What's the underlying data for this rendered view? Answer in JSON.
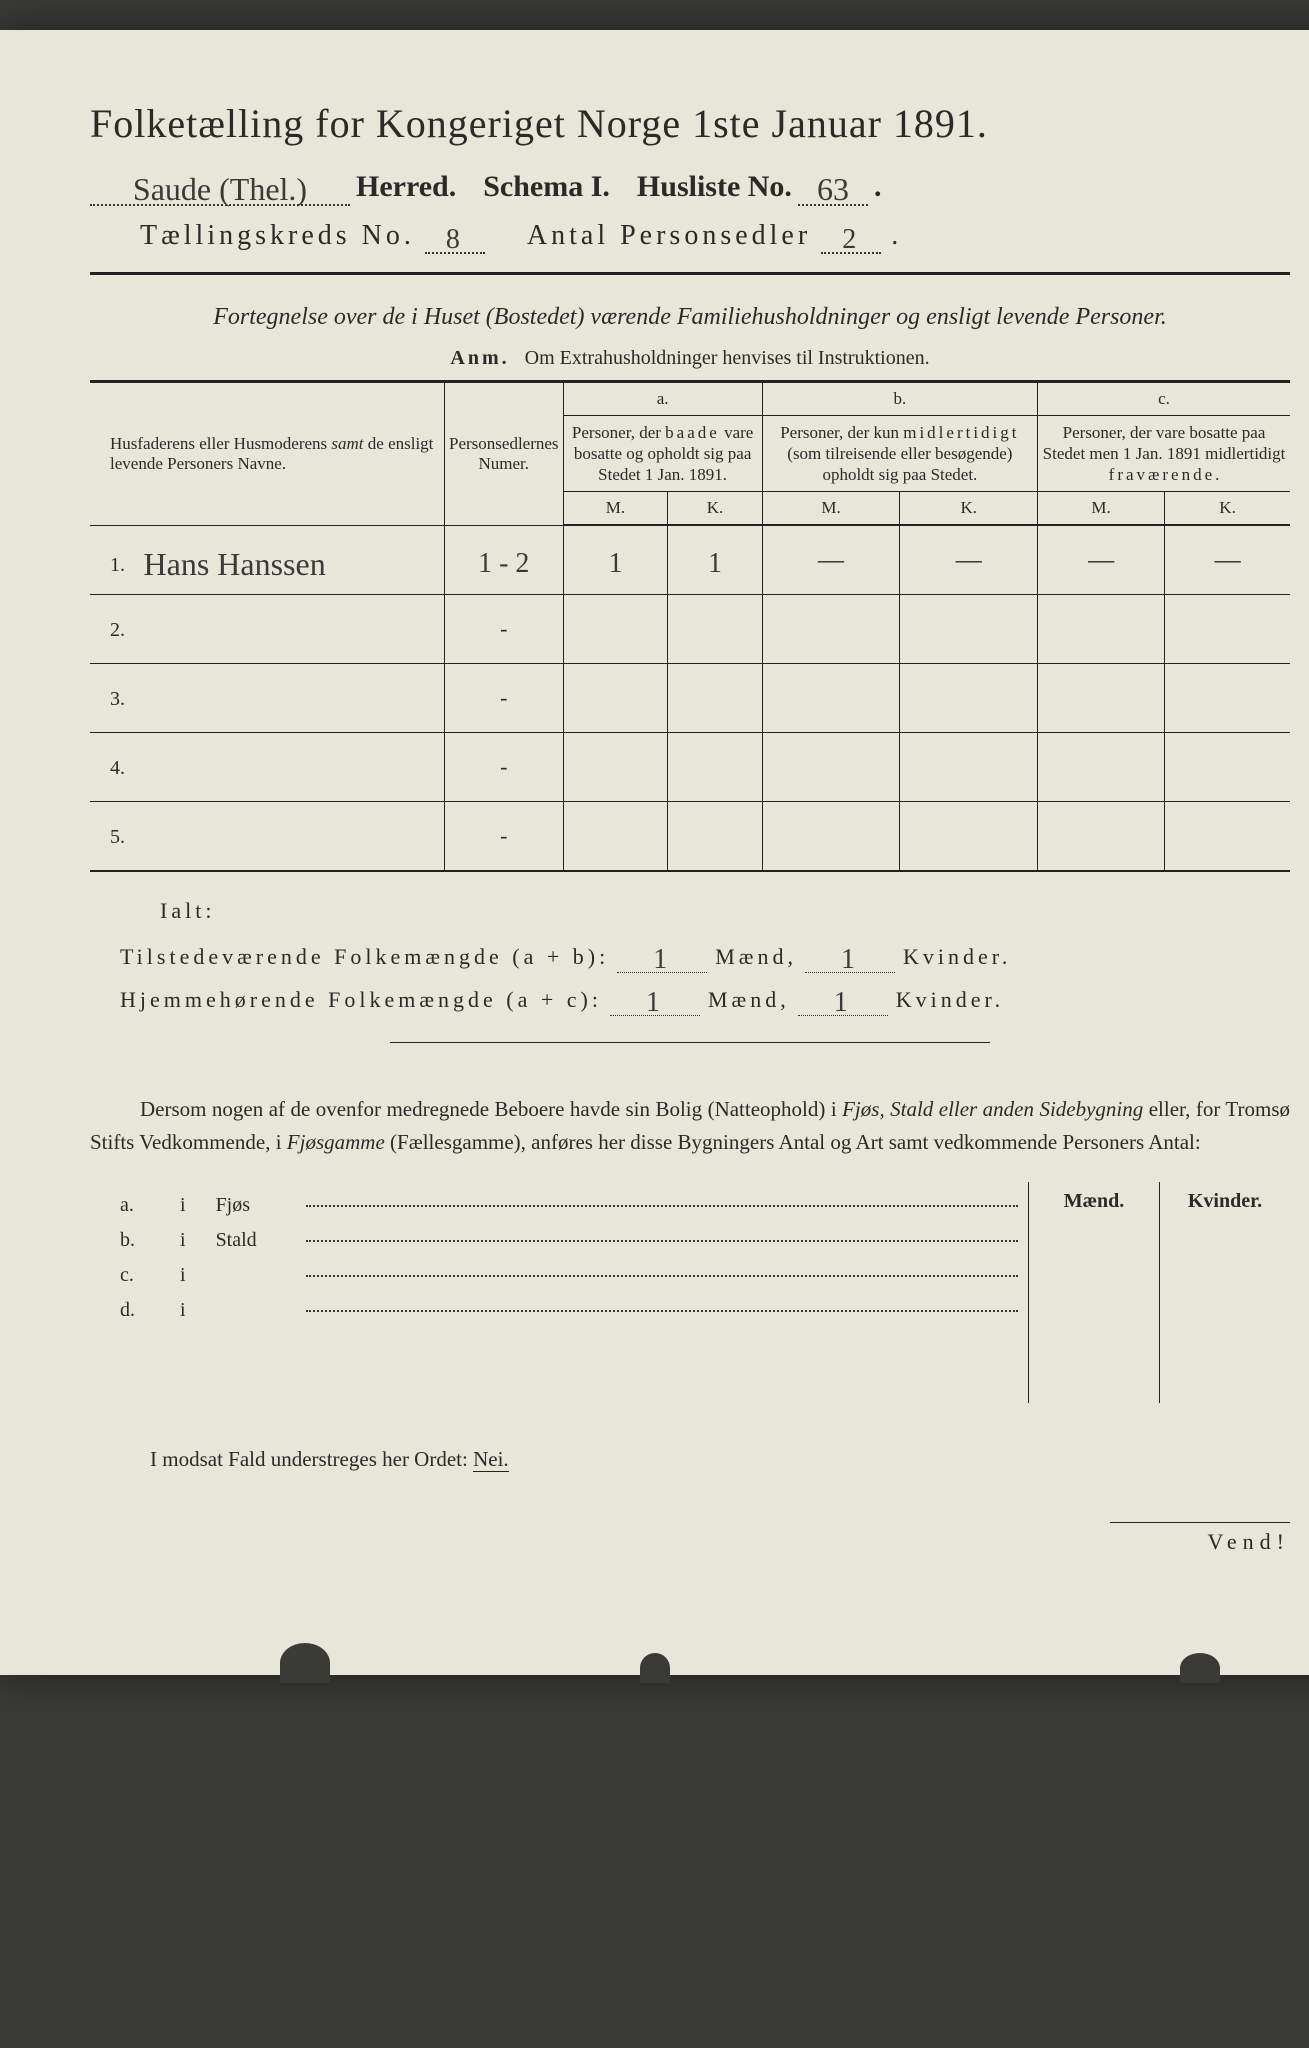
{
  "title": "Folketælling for Kongeriget Norge 1ste Januar 1891.",
  "line2": {
    "herred_hand": "Saude (Thel.)",
    "herred_label": "Herred.",
    "schema_label": "Schema I.",
    "husliste_label": "Husliste No.",
    "husliste_hand": "63"
  },
  "line3": {
    "kreds_label": "Tællingskreds No.",
    "kreds_hand": "8",
    "antal_label": "Antal Personsedler",
    "antal_hand": "2"
  },
  "subtitle": "Fortegnelse over de i Huset (Bostedet) værende Familiehusholdninger og ensligt levende Personer.",
  "anm_label": "Anm.",
  "anm_text": "Om Extrahusholdninger henvises til Instruktionen.",
  "headers": {
    "col1": "Husfaderens eller Husmoderens samt de ensligt levende Personers Navne.",
    "col2": "Personsedlernes Numer.",
    "a_label": "a.",
    "a_text": "Personer, der baade vare bosatte og opholdt sig paa Stedet 1 Jan. 1891.",
    "b_label": "b.",
    "b_text": "Personer, der kun midlertidigt (som tilreisende eller besøgende) opholdt sig paa Stedet.",
    "c_label": "c.",
    "c_text": "Personer, der vare bosatte paa Stedet men 1 Jan. 1891 midlertidigt fraværende.",
    "m": "M.",
    "k": "K."
  },
  "rows": [
    {
      "n": "1.",
      "name": "Hans Hanssen",
      "sed": "1 - 2",
      "aM": "1",
      "aK": "1",
      "bM": "—",
      "bK": "—",
      "cM": "—",
      "cK": "—"
    },
    {
      "n": "2.",
      "name": "",
      "sed": "-",
      "aM": "",
      "aK": "",
      "bM": "",
      "bK": "",
      "cM": "",
      "cK": ""
    },
    {
      "n": "3.",
      "name": "",
      "sed": "-",
      "aM": "",
      "aK": "",
      "bM": "",
      "bK": "",
      "cM": "",
      "cK": ""
    },
    {
      "n": "4.",
      "name": "",
      "sed": "-",
      "aM": "",
      "aK": "",
      "bM": "",
      "bK": "",
      "cM": "",
      "cK": ""
    },
    {
      "n": "5.",
      "name": "",
      "sed": "-",
      "aM": "",
      "aK": "",
      "bM": "",
      "bK": "",
      "cM": "",
      "cK": ""
    }
  ],
  "ialt": "Ialt:",
  "sum1": {
    "label": "Tilstedeværende Folkemængde (a + b):",
    "m": "1",
    "k": "1",
    "maend": "Mænd,",
    "kvinder": "Kvinder."
  },
  "sum2": {
    "label": "Hjemmehørende Folkemængde (a + c):",
    "m": "1",
    "k": "1",
    "maend": "Mænd,",
    "kvinder": "Kvinder."
  },
  "para_plain1": "Dersom nogen af de ovenfor medregnede Beboere havde sin Bolig (Natteophold) i ",
  "para_it1": "Fjøs, Stald eller anden Sidebygning",
  "para_plain2": " eller, for Tromsø Stifts Vedkommende, i ",
  "para_it2": "Fjøsgamme",
  "para_plain3": " (Fællesgamme), anføres her disse Bygningers Antal og Art samt vedkommende Personers Antal:",
  "mk_head": {
    "m": "Mænd.",
    "k": "Kvinder."
  },
  "list": [
    {
      "l": "a.",
      "i": "i",
      "w": "Fjøs"
    },
    {
      "l": "b.",
      "i": "i",
      "w": "Stald"
    },
    {
      "l": "c.",
      "i": "i",
      "w": ""
    },
    {
      "l": "d.",
      "i": "i",
      "w": ""
    }
  ],
  "nei_line": "I modsat Fald understreges her Ordet: ",
  "nei": "Nei.",
  "vend": "Vend!",
  "colors": {
    "paper": "#e8e6d8",
    "ink": "#2a2a28",
    "bg": "#3a3a36"
  }
}
